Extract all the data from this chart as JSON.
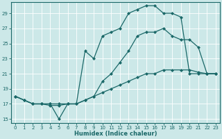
{
  "line1_x": [
    0,
    1,
    2,
    3,
    4,
    5,
    6,
    7,
    8,
    9,
    10,
    11,
    12,
    13,
    14,
    15,
    16,
    17,
    18,
    19,
    20,
    21,
    22,
    23
  ],
  "line1_y": [
    18,
    17.5,
    17,
    17,
    16.8,
    16.8,
    17,
    17,
    17.5,
    18,
    18.5,
    19,
    19.5,
    20,
    20.5,
    21,
    21,
    21.5,
    21.5,
    21.5,
    21.5,
    21.2,
    21,
    21
  ],
  "line2_x": [
    0,
    1,
    2,
    3,
    4,
    5,
    6,
    7,
    8,
    9,
    10,
    11,
    12,
    13,
    14,
    15,
    16,
    17,
    18,
    19,
    20,
    21,
    22,
    23
  ],
  "line2_y": [
    18,
    17.5,
    17,
    17,
    17,
    17,
    17,
    17,
    17.5,
    18,
    20,
    21,
    22.5,
    24,
    26,
    26.5,
    26.5,
    27,
    26,
    25.5,
    25.5,
    24.5,
    21,
    21
  ],
  "line3_x": [
    0,
    1,
    2,
    3,
    4,
    5,
    6,
    7,
    8,
    9,
    10,
    11,
    12,
    13,
    14,
    15,
    16,
    17,
    18,
    19,
    20,
    21,
    22,
    23
  ],
  "line3_y": [
    18,
    17.5,
    17,
    17,
    17,
    15,
    17,
    17,
    24,
    23,
    26,
    26.5,
    27,
    29,
    29.5,
    30,
    30,
    29,
    29,
    28.5,
    21,
    21,
    21,
    21
  ],
  "bg_color": "#cce8e8",
  "line_color": "#1a6868",
  "grid_color": "#b0d8d8",
  "xlabel": "Humidex (Indice chaleur)",
  "ylabel_ticks": [
    15,
    17,
    19,
    21,
    23,
    25,
    27,
    29
  ],
  "xticks": [
    0,
    1,
    2,
    3,
    4,
    5,
    6,
    7,
    8,
    9,
    10,
    11,
    12,
    13,
    14,
    15,
    16,
    17,
    18,
    19,
    20,
    21,
    22,
    23
  ],
  "xlim": [
    -0.5,
    23.5
  ],
  "ylim": [
    14.5,
    30.5
  ],
  "tick_fontsize": 5,
  "xlabel_fontsize": 6,
  "marker_size": 2.5,
  "linewidth": 0.9
}
